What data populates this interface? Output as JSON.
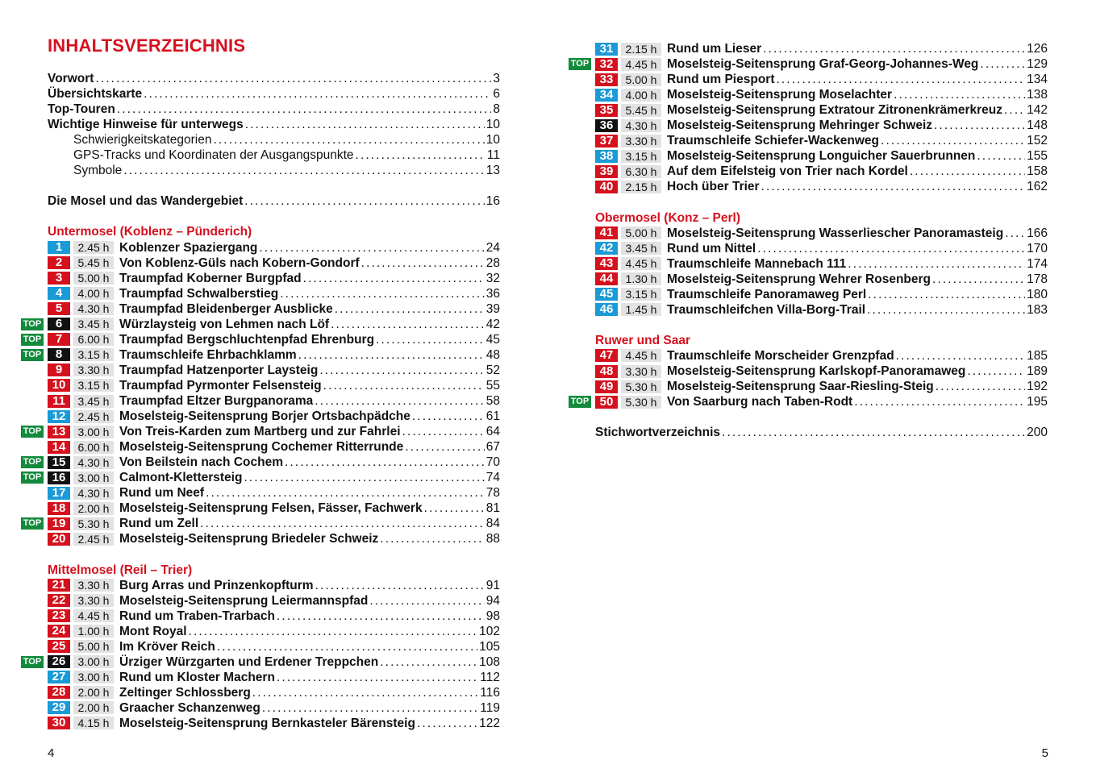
{
  "title": "INHALTSVERZEICHNIS",
  "colors": {
    "blue": "#1a9ad6",
    "red": "#d5111e",
    "black": "#111111",
    "top": "#138a3c",
    "time_bg": "#e2e2e2"
  },
  "top_label": "TOP",
  "left": [
    {
      "type": "entry",
      "label": "Vorwort",
      "page": "3"
    },
    {
      "type": "entry",
      "label": "Übersichtskarte",
      "page": "6"
    },
    {
      "type": "entry",
      "label": "Top-Touren",
      "page": "8"
    },
    {
      "type": "entry",
      "label": "Wichtige Hinweise für unterwegs",
      "page": "10"
    },
    {
      "type": "sub",
      "label": "Schwierigkeitskategorien",
      "page": "10"
    },
    {
      "type": "sub",
      "label": "GPS-Tracks und Koordinaten der Ausgangspunkte",
      "page": "11"
    },
    {
      "type": "sub",
      "label": "Symbole",
      "page": "13"
    },
    {
      "type": "blank"
    },
    {
      "type": "entry",
      "label": "Die Mosel und das Wandergebiet",
      "page": "16"
    },
    {
      "type": "blank"
    },
    {
      "type": "section",
      "label": "Untermosel (Koblenz – Pünderich)"
    },
    {
      "type": "tour",
      "num": "1",
      "color": "blue",
      "time": "2.45 h",
      "label": "Koblenzer Spaziergang",
      "page": "24"
    },
    {
      "type": "tour",
      "num": "2",
      "color": "red",
      "time": "5.45 h",
      "label": "Von Koblenz-Güls nach Kobern-Gondorf",
      "page": "28"
    },
    {
      "type": "tour",
      "num": "3",
      "color": "red",
      "time": "5.00 h",
      "label": "Traumpfad Koberner Burgpfad",
      "page": "32"
    },
    {
      "type": "tour",
      "num": "4",
      "color": "blue",
      "time": "4.00 h",
      "label": "Traumpfad Schwalberstieg",
      "page": "36"
    },
    {
      "type": "tour",
      "num": "5",
      "color": "red",
      "time": "4.30 h",
      "label": "Traumpfad Bleidenberger Ausblicke",
      "page": "39"
    },
    {
      "type": "tour",
      "num": "6",
      "color": "black",
      "top": true,
      "time": "3.45 h",
      "label": "Würzlaysteig von Lehmen nach Löf",
      "page": "42"
    },
    {
      "type": "tour",
      "num": "7",
      "color": "red",
      "top": true,
      "time": "6.00 h",
      "label": "Traumpfad Bergschluchtenpfad Ehrenburg",
      "page": "45"
    },
    {
      "type": "tour",
      "num": "8",
      "color": "black",
      "top": true,
      "time": "3.15 h",
      "label": "Traumschleife Ehrbachklamm",
      "page": "48"
    },
    {
      "type": "tour",
      "num": "9",
      "color": "red",
      "time": "3.30 h",
      "label": "Traumpfad Hatzenporter Laysteig",
      "page": "52"
    },
    {
      "type": "tour",
      "num": "10",
      "color": "red",
      "time": "3.15 h",
      "label": "Traumpfad Pyrmonter Felsensteig",
      "page": "55"
    },
    {
      "type": "tour",
      "num": "11",
      "color": "red",
      "time": "3.45 h",
      "label": "Traumpfad Eltzer Burgpanorama",
      "page": "58"
    },
    {
      "type": "tour",
      "num": "12",
      "color": "blue",
      "time": "2.45 h",
      "label": "Moselsteig-Seitensprung Borjer Ortsbachpädche",
      "page": "61"
    },
    {
      "type": "tour",
      "num": "13",
      "color": "red",
      "top": true,
      "time": "3.00 h",
      "label": "Von Treis-Karden zum Martberg und zur Fahrlei",
      "page": "64"
    },
    {
      "type": "tour",
      "num": "14",
      "color": "red",
      "time": "6.00 h",
      "label": "Moselsteig-Seitensprung Cochemer Ritterrunde",
      "page": "67"
    },
    {
      "type": "tour",
      "num": "15",
      "color": "black",
      "top": true,
      "time": "4.30 h",
      "label": "Von Beilstein nach Cochem",
      "page": "70"
    },
    {
      "type": "tour",
      "num": "16",
      "color": "black",
      "top": true,
      "time": "3.00 h",
      "label": "Calmont-Klettersteig",
      "page": "74"
    },
    {
      "type": "tour",
      "num": "17",
      "color": "blue",
      "time": "4.30 h",
      "label": "Rund um Neef",
      "page": "78"
    },
    {
      "type": "tour",
      "num": "18",
      "color": "red",
      "time": "2.00 h",
      "label": "Moselsteig-Seitensprung Felsen, Fässer, Fachwerk",
      "page": "81"
    },
    {
      "type": "tour",
      "num": "19",
      "color": "red",
      "top": true,
      "time": "5.30 h",
      "label": "Rund um Zell",
      "page": "84"
    },
    {
      "type": "tour",
      "num": "20",
      "color": "red",
      "time": "2.45 h",
      "label": "Moselsteig-Seitensprung Briedeler Schweiz",
      "page": "88"
    },
    {
      "type": "blank"
    },
    {
      "type": "section",
      "label": "Mittelmosel (Reil – Trier)"
    },
    {
      "type": "tour",
      "num": "21",
      "color": "red",
      "time": "3.30 h",
      "label": "Burg Arras und Prinzenkopfturm",
      "page": "91"
    },
    {
      "type": "tour",
      "num": "22",
      "color": "red",
      "time": "3.30 h",
      "label": "Moselsteig-Seitensprung Leiermannspfad",
      "page": "94"
    },
    {
      "type": "tour",
      "num": "23",
      "color": "red",
      "time": "4.45 h",
      "label": "Rund um Traben-Trarbach",
      "page": "98"
    },
    {
      "type": "tour",
      "num": "24",
      "color": "red",
      "time": "1.00 h",
      "label": "Mont Royal",
      "page": "102"
    },
    {
      "type": "tour",
      "num": "25",
      "color": "red",
      "time": "5.00 h",
      "label": "Im Kröver Reich",
      "page": "105"
    },
    {
      "type": "tour",
      "num": "26",
      "color": "black",
      "top": true,
      "time": "3.00 h",
      "label": "Ürziger Würzgarten und Erdener Treppchen",
      "page": "108"
    },
    {
      "type": "tour",
      "num": "27",
      "color": "blue",
      "time": "3.00 h",
      "label": "Rund um Kloster Machern",
      "page": "112"
    },
    {
      "type": "tour",
      "num": "28",
      "color": "red",
      "time": "2.00 h",
      "label": "Zeltinger Schlossberg",
      "page": "116"
    },
    {
      "type": "tour",
      "num": "29",
      "color": "blue",
      "time": "2.00 h",
      "label": "Graacher Schanzenweg",
      "page": "119"
    },
    {
      "type": "tour",
      "num": "30",
      "color": "red",
      "time": "4.15 h",
      "label": "Moselsteig-Seitensprung Bernkasteler Bärensteig",
      "page": "122"
    }
  ],
  "right": [
    {
      "type": "tour",
      "num": "31",
      "color": "blue",
      "time": "2.15 h",
      "label": "Rund um Lieser",
      "page": "126"
    },
    {
      "type": "tour",
      "num": "32",
      "color": "red",
      "top": true,
      "time": "4.45 h",
      "label": "Moselsteig-Seitensprung Graf-Georg-Johannes-Weg",
      "page": "129"
    },
    {
      "type": "tour",
      "num": "33",
      "color": "red",
      "time": "5.00 h",
      "label": "Rund um Piesport",
      "page": "134"
    },
    {
      "type": "tour",
      "num": "34",
      "color": "blue",
      "time": "4.00 h",
      "label": "Moselsteig-Seitensprung Moselachter",
      "page": "138"
    },
    {
      "type": "tour",
      "num": "35",
      "color": "red",
      "time": "5.45 h",
      "label": "Moselsteig-Seitensprung Extratour Zitronenkrämerkreuz",
      "page": "142"
    },
    {
      "type": "tour",
      "num": "36",
      "color": "black",
      "time": "4.30 h",
      "label": "Moselsteig-Seitensprung Mehringer Schweiz",
      "page": "148"
    },
    {
      "type": "tour",
      "num": "37",
      "color": "red",
      "time": "3.30 h",
      "label": "Traumschleife Schiefer-Wackenweg",
      "page": "152"
    },
    {
      "type": "tour",
      "num": "38",
      "color": "blue",
      "time": "3.15 h",
      "label": "Moselsteig-Seitensprung Longuicher Sauerbrunnen",
      "page": "155"
    },
    {
      "type": "tour",
      "num": "39",
      "color": "red",
      "time": "6.30 h",
      "label": "Auf dem Eifelsteig von Trier nach Kordel",
      "page": "158"
    },
    {
      "type": "tour",
      "num": "40",
      "color": "red",
      "time": "2.15 h",
      "label": "Hoch über Trier",
      "page": "162"
    },
    {
      "type": "blank"
    },
    {
      "type": "section",
      "label": "Obermosel (Konz – Perl)"
    },
    {
      "type": "tour",
      "num": "41",
      "color": "red",
      "time": "5.00 h",
      "label": "Moselsteig-Seitensprung Wasserliescher Panoramasteig",
      "page": "166"
    },
    {
      "type": "tour",
      "num": "42",
      "color": "blue",
      "time": "3.45 h",
      "label": "Rund um Nittel",
      "page": "170"
    },
    {
      "type": "tour",
      "num": "43",
      "color": "red",
      "time": "4.45 h",
      "label": "Traumschleife Mannebach 111",
      "page": "174"
    },
    {
      "type": "tour",
      "num": "44",
      "color": "red",
      "time": "1.30 h",
      "label": "Moselsteig-Seitensprung Wehrer Rosenberg",
      "page": "178"
    },
    {
      "type": "tour",
      "num": "45",
      "color": "blue",
      "time": "3.15 h",
      "label": "Traumschleife Panoramaweg Perl",
      "page": "180"
    },
    {
      "type": "tour",
      "num": "46",
      "color": "blue",
      "time": "1.45 h",
      "label": "Traumschleifchen Villa-Borg-Trail",
      "page": "183"
    },
    {
      "type": "blank"
    },
    {
      "type": "section",
      "label": "Ruwer und Saar"
    },
    {
      "type": "tour",
      "num": "47",
      "color": "red",
      "time": "4.45 h",
      "label": "Traumschleife Morscheider Grenzpfad",
      "page": "185"
    },
    {
      "type": "tour",
      "num": "48",
      "color": "red",
      "time": "3.30 h",
      "label": "Moselsteig-Seitensprung Karlskopf-Panoramaweg",
      "page": "189"
    },
    {
      "type": "tour",
      "num": "49",
      "color": "red",
      "time": "5.30 h",
      "label": "Moselsteig-Seitensprung Saar-Riesling-Steig",
      "page": "192"
    },
    {
      "type": "tour",
      "num": "50",
      "color": "red",
      "top": true,
      "time": "5.30 h",
      "label": "Von Saarburg nach Taben-Rodt",
      "page": "195"
    },
    {
      "type": "blank"
    },
    {
      "type": "entry",
      "label": "Stichwortverzeichnis",
      "page": "200"
    }
  ],
  "page_left": "4",
  "page_right": "5"
}
